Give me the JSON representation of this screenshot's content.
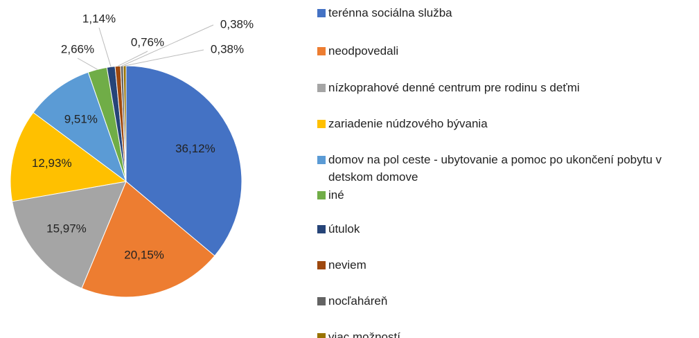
{
  "chart_data": {
    "type": "pie",
    "categories": [
      "terénna sociálna služba",
      "neodpovedali",
      "nízkoprahové denné centrum pre rodinu s deťmi",
      "zariadenie núdzového bývania",
      "domov na pol ceste - ubytovanie a pomoc po ukončení pobytu v detskom domove",
      "iné",
      "útulok",
      "neviem",
      "nocľaháreň",
      "viac možností"
    ],
    "values": [
      36.12,
      20.15,
      15.97,
      12.93,
      9.51,
      2.66,
      1.14,
      0.76,
      0.38,
      0.38
    ],
    "value_labels": [
      "36,12%",
      "20,15%",
      "15,97%",
      "12,93%",
      "9,51%",
      "2,66%",
      "1,14%",
      "0,76%",
      "0,38%",
      "0,38%"
    ],
    "colors": [
      "#4472c4",
      "#ed7d31",
      "#a5a5a5",
      "#ffc000",
      "#5b9bd5",
      "#70ad47",
      "#264478",
      "#9e480e",
      "#636363",
      "#997300"
    ],
    "legend": "right"
  }
}
